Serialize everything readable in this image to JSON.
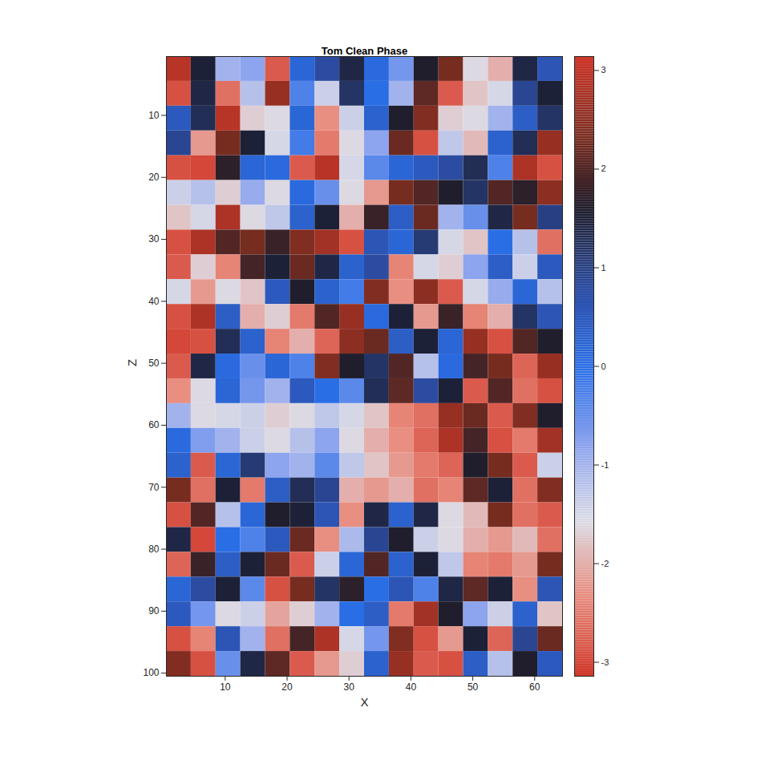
{
  "chart_data": {
    "type": "heatmap",
    "title": "Tom Clean Phase",
    "x_label": "X",
    "y_label": "Z",
    "xlim": [
      0.5,
      64.5
    ],
    "ylim": [
      0.5,
      100.5
    ],
    "xticks": [
      10,
      20,
      30,
      40,
      50,
      60
    ],
    "yticks": [
      10,
      20,
      30,
      40,
      50,
      60,
      70,
      80,
      90,
      100
    ],
    "cells": [
      [
        2.9,
        1.5,
        -1.0,
        -0.8,
        -2.8,
        0.2,
        0.8,
        1.4,
        0.1,
        -0.6,
        1.6,
        2.3,
        -1.6,
        -2.0,
        1.4,
        0.6
      ],
      [
        -2.9,
        1.4,
        -2.6,
        -1.2,
        2.6,
        -0.3,
        -1.4,
        1.2,
        0.0,
        -1.0,
        2.1,
        -2.8,
        -1.8,
        -1.5,
        0.9,
        1.5
      ],
      [
        0.5,
        1.3,
        2.9,
        -1.7,
        -1.6,
        0.2,
        -2.3,
        -1.4,
        0.3,
        1.6,
        2.4,
        -1.7,
        -1.6,
        -1.0,
        0.4,
        1.2
      ],
      [
        0.9,
        -2.2,
        2.3,
        1.5,
        -1.5,
        -0.2,
        -2.5,
        -1.6,
        -0.8,
        2.2,
        -2.9,
        -1.3,
        -1.9,
        0.3,
        1.3,
        2.6
      ],
      [
        -2.9,
        -3.0,
        1.7,
        0.2,
        0.1,
        -2.8,
        2.9,
        -1.5,
        -0.4,
        0.2,
        0.5,
        0.8,
        1.3,
        -0.3,
        2.8,
        -2.9
      ],
      [
        -1.4,
        -1.2,
        -1.7,
        -0.9,
        -1.6,
        0.1,
        -0.5,
        -1.6,
        -2.2,
        2.3,
        2.0,
        1.6,
        1.2,
        2.0,
        1.7,
        2.5
      ],
      [
        -1.8,
        -1.5,
        2.8,
        -1.6,
        -1.3,
        0.3,
        1.5,
        -2.0,
        1.8,
        0.4,
        2.2,
        -1.0,
        -0.5,
        1.4,
        2.3,
        1.0
      ],
      [
        -2.9,
        2.8,
        2.0,
        2.3,
        1.8,
        2.4,
        2.7,
        -2.9,
        0.6,
        0.2,
        1.1,
        -1.5,
        -1.8,
        0.0,
        -1.2,
        -2.6
      ],
      [
        -2.8,
        -1.7,
        -2.4,
        1.9,
        1.5,
        2.2,
        1.4,
        0.3,
        0.8,
        -2.4,
        -1.5,
        -1.7,
        -0.8,
        0.4,
        -1.4,
        0.5
      ],
      [
        -1.5,
        -2.2,
        -1.6,
        -1.8,
        0.5,
        1.6,
        0.3,
        -0.2,
        2.4,
        -2.3,
        2.5,
        -2.8,
        -1.5,
        -0.9,
        0.2,
        -1.2
      ],
      [
        -2.9,
        2.8,
        0.4,
        -2.0,
        -1.7,
        -2.5,
        2.0,
        2.6,
        0.1,
        1.5,
        -2.2,
        1.8,
        -2.4,
        -2.0,
        1.2,
        0.6
      ],
      [
        -3.0,
        -2.9,
        1.3,
        0.3,
        -2.4,
        -2.0,
        -2.7,
        2.5,
        2.2,
        0.4,
        1.5,
        0.2,
        2.6,
        -2.9,
        2.0,
        1.6
      ],
      [
        -2.8,
        1.4,
        0.1,
        -0.5,
        0.2,
        -0.3,
        2.4,
        1.6,
        1.2,
        2.0,
        -1.2,
        0.1,
        1.9,
        2.3,
        -2.7,
        2.6
      ],
      [
        -2.3,
        -1.6,
        0.2,
        -0.6,
        -1.0,
        0.5,
        0.0,
        -0.4,
        1.3,
        2.1,
        0.8,
        1.5,
        -2.8,
        2.0,
        -2.6,
        -2.9
      ],
      [
        -1.0,
        -1.6,
        -1.5,
        -1.4,
        -1.7,
        -1.6,
        -1.3,
        -1.5,
        -1.8,
        -2.4,
        -2.6,
        2.6,
        2.2,
        -2.8,
        2.4,
        1.6
      ],
      [
        0.1,
        -0.7,
        -1.0,
        -1.4,
        -1.6,
        -1.2,
        -0.8,
        -1.6,
        -2.0,
        -2.3,
        -2.7,
        2.8,
        1.9,
        -2.9,
        -2.5,
        2.7
      ],
      [
        0.3,
        -2.8,
        0.2,
        1.1,
        -0.8,
        -1.0,
        -0.4,
        -1.3,
        -1.8,
        -2.2,
        -2.5,
        -2.7,
        1.6,
        2.3,
        -2.8,
        -1.4
      ],
      [
        2.3,
        -2.6,
        1.5,
        -2.5,
        0.4,
        1.3,
        0.9,
        -2.0,
        -2.2,
        -2.0,
        -2.6,
        -2.4,
        2.1,
        1.5,
        -2.6,
        2.4
      ],
      [
        -2.9,
        2.0,
        -1.2,
        0.2,
        1.6,
        1.5,
        0.6,
        -2.3,
        1.4,
        0.3,
        1.4,
        -1.6,
        -1.9,
        2.3,
        -2.6,
        -2.8
      ],
      [
        1.4,
        -3.0,
        0.0,
        -0.3,
        0.5,
        2.2,
        -2.3,
        -1.1,
        0.9,
        1.6,
        -1.4,
        -1.6,
        -2.0,
        -2.2,
        -1.9,
        -2.6
      ],
      [
        -2.7,
        1.8,
        0.4,
        1.5,
        2.2,
        -2.8,
        -1.4,
        0.2,
        2.0,
        0.3,
        1.5,
        -1.3,
        -2.4,
        -2.5,
        -2.2,
        2.3
      ],
      [
        0.2,
        0.8,
        1.5,
        -0.4,
        -2.9,
        2.3,
        1.2,
        1.7,
        0.0,
        0.6,
        -0.3,
        1.4,
        2.1,
        1.5,
        -2.3,
        0.6
      ],
      [
        0.5,
        -0.6,
        -1.6,
        -1.4,
        -2.1,
        -1.7,
        -1.0,
        0.0,
        0.4,
        -2.5,
        2.7,
        1.6,
        -0.8,
        -1.4,
        0.3,
        -1.8
      ],
      [
        -2.9,
        -2.4,
        0.6,
        -1.0,
        -2.6,
        1.9,
        2.8,
        -1.5,
        -0.6,
        2.4,
        -2.9,
        -2.2,
        1.5,
        -2.7,
        0.9,
        2.2
      ],
      [
        2.4,
        -2.9,
        -0.5,
        1.4,
        2.1,
        -2.8,
        -2.2,
        -1.7,
        0.3,
        2.6,
        -2.8,
        -2.9,
        0.4,
        -1.2,
        1.6,
        0.5
      ]
    ],
    "colorbar": {
      "range": [
        -3.1416,
        3.1416
      ],
      "ticks": [
        -3,
        -2,
        -1,
        0,
        1,
        2,
        3
      ]
    }
  }
}
